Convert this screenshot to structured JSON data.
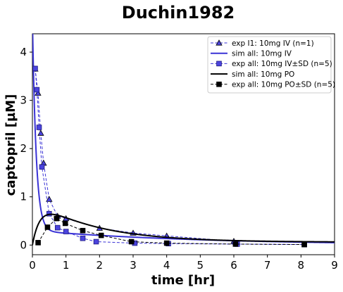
{
  "chart_data": {
    "type": "line",
    "title": "Duchin1982",
    "xlabel": "time [hr]",
    "ylabel": "captopril [µM]",
    "xlim": [
      0,
      9
    ],
    "ylim": [
      -0.2,
      4.38
    ],
    "xticks": [
      0,
      1,
      2,
      3,
      4,
      5,
      6,
      7,
      8,
      9
    ],
    "yticks": [
      0,
      1,
      2,
      3,
      4
    ],
    "grid": false,
    "legend_position": "top-right",
    "colors": {
      "iv": "#3a33d6",
      "po": "#000000",
      "iv_marker_fill": "#4b44dd"
    },
    "series": [
      {
        "name": "exp I1: 10mg IV (n=1)",
        "kind": "markers-dashed",
        "marker": "triangle",
        "color": "#3a33d6",
        "x": [
          0.083,
          0.167,
          0.25,
          0.333,
          0.5,
          0.75,
          1.0,
          2.0,
          3.0,
          4.0,
          6.0
        ],
        "y": [
          3.65,
          3.15,
          2.32,
          1.7,
          0.95,
          0.6,
          0.55,
          0.35,
          0.25,
          0.19,
          0.08
        ]
      },
      {
        "name": "sim all: 10mg IV",
        "kind": "line",
        "color": "#3a33d6",
        "model": {
          "A": 4.4,
          "alpha": 9.0,
          "B": 0.3,
          "beta": 0.2
        }
      },
      {
        "name": "exp all: 10mg IV±SD (n=5)",
        "kind": "markers-dashed",
        "marker": "square",
        "color": "#3a33d6",
        "x": [
          0.083,
          0.133,
          0.2,
          0.283,
          0.5,
          0.75,
          1.0,
          1.5,
          1.9,
          3.05,
          4.05,
          6.1,
          8.1
        ],
        "y": [
          3.66,
          3.22,
          2.44,
          1.62,
          0.65,
          0.36,
          0.28,
          0.14,
          0.07,
          0.04,
          0.03,
          0.02,
          0.01
        ]
      },
      {
        "name": "sim all: 10mg PO",
        "kind": "line",
        "color": "#000000",
        "model": {
          "C": 0.9,
          "ka": 4.5,
          "ke": 0.55,
          "base": 0.06
        }
      },
      {
        "name": "exp all: 10mg PO±SD (n=5)",
        "kind": "markers-dashed",
        "marker": "square",
        "color": "#000000",
        "x": [
          0.17,
          0.45,
          0.72,
          0.98,
          1.5,
          2.05,
          2.95,
          4.0,
          6.05,
          8.1
        ],
        "y": [
          0.05,
          0.37,
          0.55,
          0.45,
          0.3,
          0.2,
          0.07,
          0.04,
          0.02,
          0.01
        ]
      }
    ]
  }
}
